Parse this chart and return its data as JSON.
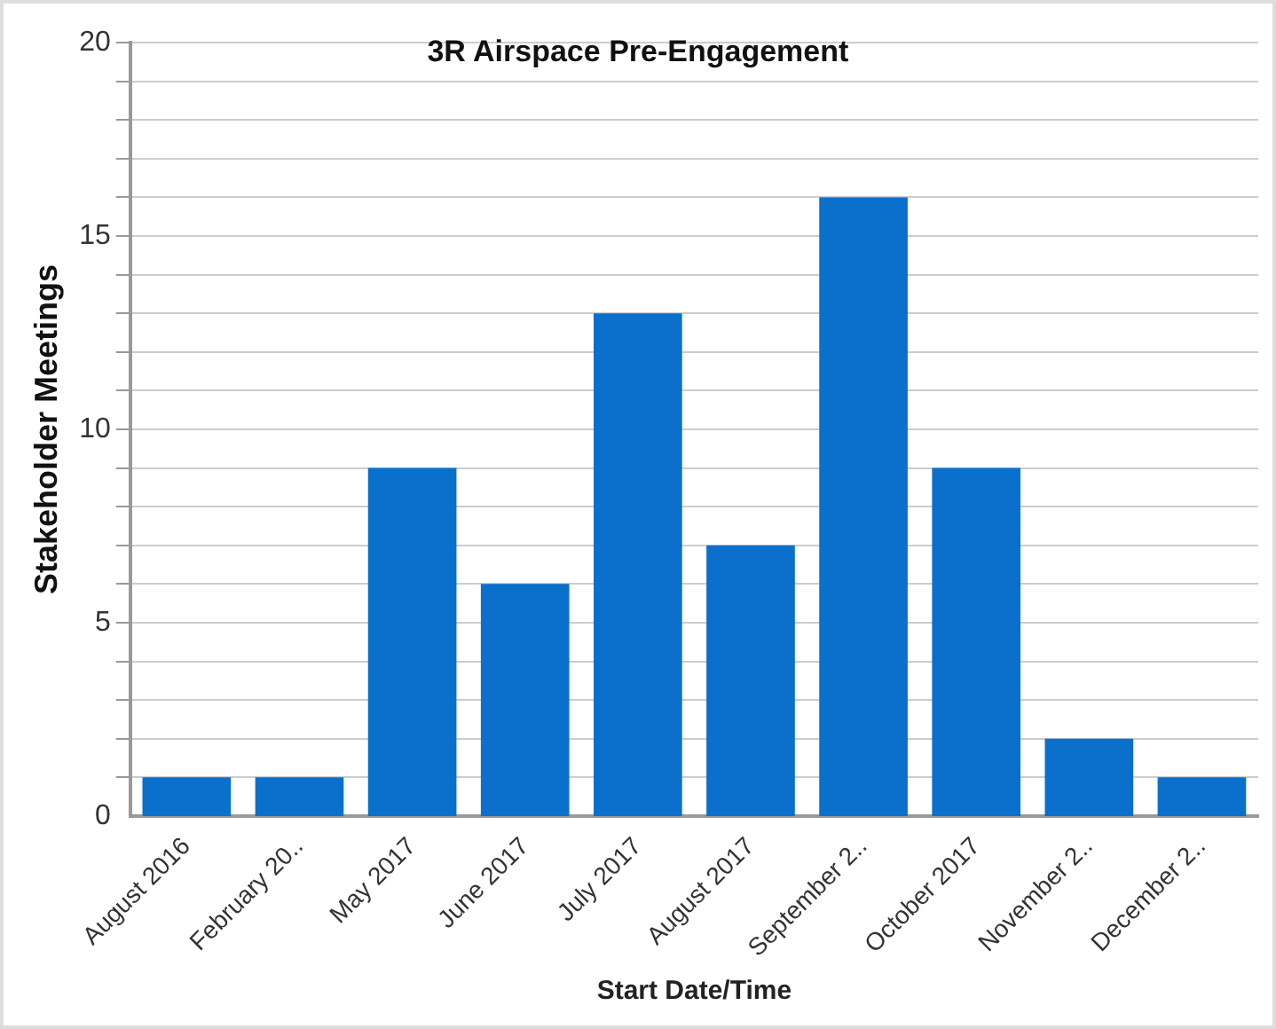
{
  "chart_data": {
    "type": "bar",
    "title": "3R Airspace Pre-Engagement",
    "xlabel": "Start Date/Time",
    "ylabel": "Stakeholder Meetings",
    "categories": [
      "August 2016",
      "February 20..",
      "May 2017",
      "June 2017",
      "July 2017",
      "August 2017",
      "September 2..",
      "October 2017",
      "November 2..",
      "December 2.."
    ],
    "values": [
      1,
      1,
      9,
      6,
      13,
      7,
      16,
      9,
      2,
      1
    ],
    "color": "#0b6fcc",
    "ylim": [
      0,
      20
    ],
    "yticks": [
      0,
      {
        "value": 1,
        "label": null
      },
      {
        "value": 2,
        "label": null
      },
      {
        "value": 3,
        "label": null
      },
      {
        "value": 4,
        "label": null
      },
      5,
      {
        "value": 6,
        "label": null
      },
      {
        "value": 7,
        "label": null
      },
      {
        "value": 8,
        "label": null
      },
      {
        "value": 9,
        "label": null
      },
      10,
      {
        "value": 11,
        "label": null
      },
      {
        "value": 12,
        "label": null
      },
      {
        "value": 13,
        "label": null
      },
      {
        "value": 14,
        "label": null
      },
      15,
      {
        "value": 16,
        "label": null
      },
      {
        "value": 17,
        "label": null
      },
      {
        "value": 18,
        "label": null
      },
      {
        "value": 19,
        "label": null
      },
      20
    ],
    "grid": "y",
    "legend": false
  }
}
